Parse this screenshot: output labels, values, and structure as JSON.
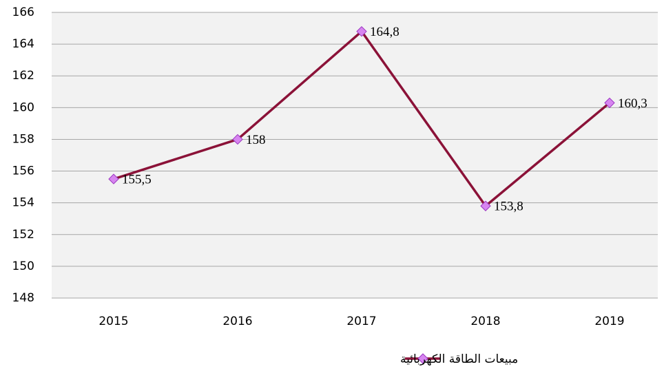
{
  "chart_data": {
    "type": "line",
    "categories": [
      "2015",
      "2016",
      "2017",
      "2018",
      "2019"
    ],
    "series": [
      {
        "name": "مبيعات الطاقة الكهربائية",
        "color": "#8b1238",
        "marker_color": "#d785f0",
        "values": [
          155.5,
          158,
          164.8,
          153.8,
          160.3
        ],
        "value_labels": [
          "155,5",
          "158",
          "164,8",
          "153,8",
          "160,3"
        ]
      }
    ],
    "ylim": [
      148,
      166
    ],
    "yticks": [
      148,
      150,
      152,
      154,
      156,
      158,
      160,
      162,
      164,
      166
    ],
    "grid": true,
    "legend": "bottom"
  }
}
